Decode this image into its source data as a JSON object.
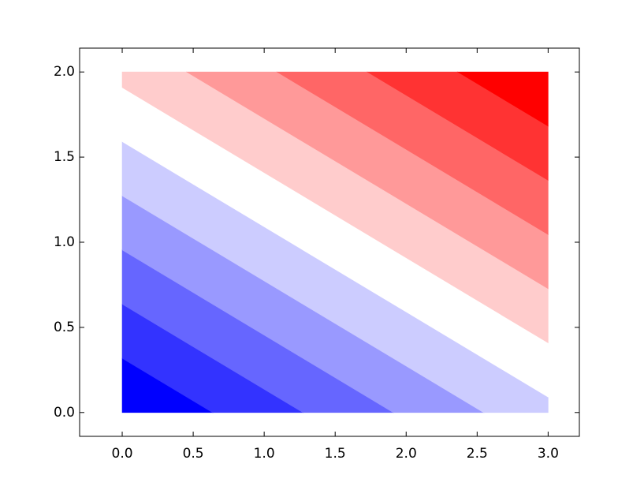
{
  "chart_data": {
    "type": "filled-contour",
    "title": "",
    "xlabel": "",
    "ylabel": "",
    "function": "z = x + 2*y",
    "x_range": [
      0,
      3
    ],
    "y_range": [
      0,
      2
    ],
    "xlim": [
      -0.3,
      3.22
    ],
    "ylim": [
      -0.14,
      2.14
    ],
    "levels": [
      0,
      0.875,
      1.75,
      2.625,
      3.5,
      4.375,
      5.25,
      6.125,
      7
    ],
    "colormap": "bwr",
    "band_colors": [
      "#0000ff",
      "#3333ff",
      "#6666ff",
      "#9999ff",
      "#ccccff",
      "#ffffff",
      "#ffcccc",
      "#ff9999",
      "#ff6666",
      "#ff3333",
      "#ff0000"
    ],
    "x_ticks": [
      "0.0",
      "0.5",
      "1.0",
      "1.5",
      "2.0",
      "2.5",
      "3.0"
    ],
    "y_ticks": [
      "0.0",
      "0.5",
      "1.0",
      "1.5",
      "2.0"
    ],
    "grid": false,
    "legend": "none"
  }
}
